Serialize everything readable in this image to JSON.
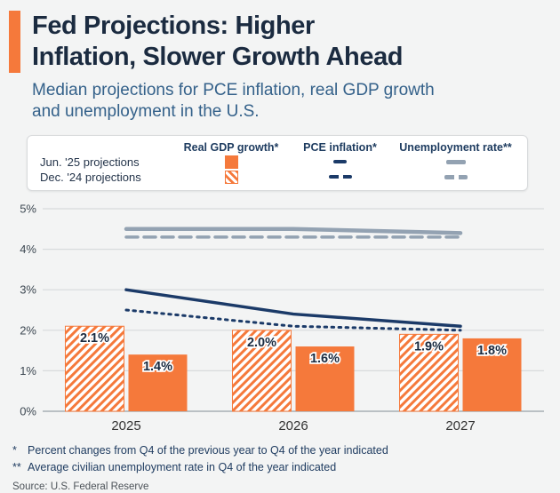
{
  "colors": {
    "orange": "#f5793b",
    "navy": "#1b3a68",
    "gray": "#93a2b2",
    "title": "#1b2b40",
    "subtitle": "#34618a"
  },
  "header": {
    "title_line1": "Fed Projections: Higher",
    "title_line2": "Inflation, Slower Growth Ahead",
    "subtitle_line1": "Median projections for PCE inflation, real GDP growth",
    "subtitle_line2": "and unemployment in the U.S."
  },
  "legend": {
    "columns": [
      "Real GDP growth*",
      "PCE inflation*",
      "Unemployment rate**"
    ],
    "rows": [
      "Jun. '25 projections",
      "Dec. '24 projections"
    ]
  },
  "chart_data": {
    "type": "bar+line combo",
    "categories": [
      "2025",
      "2026",
      "2027"
    ],
    "ylim": [
      0,
      5
    ],
    "yticks": [
      "0%",
      "1%",
      "2%",
      "3%",
      "4%",
      "5%"
    ],
    "bar_series": [
      {
        "name": "Dec. '24 projections",
        "metric": "Real GDP growth",
        "style": "hatched",
        "values": [
          2.1,
          2.0,
          1.9
        ],
        "labels": [
          "2.1%",
          "2.0%",
          "1.9%"
        ]
      },
      {
        "name": "Jun. '25 projections",
        "metric": "Real GDP growth",
        "style": "solid",
        "values": [
          1.4,
          1.6,
          1.8
        ],
        "labels": [
          "1.4%",
          "1.6%",
          "1.8%"
        ]
      }
    ],
    "line_series": [
      {
        "name": "Jun. '25 projections",
        "metric": "Unemployment rate",
        "style": "solid",
        "color": "#93a2b2",
        "width": 4.5,
        "values": [
          4.5,
          4.5,
          4.4
        ]
      },
      {
        "name": "Dec. '24 projections",
        "metric": "Unemployment rate",
        "style": "dashed",
        "color": "#93a2b2",
        "width": 3.5,
        "values": [
          4.3,
          4.3,
          4.3
        ]
      },
      {
        "name": "Jun. '25 projections",
        "metric": "PCE inflation",
        "style": "solid",
        "color": "#1b3a68",
        "width": 3.5,
        "values": [
          3.0,
          2.4,
          2.1
        ]
      },
      {
        "name": "Dec. '24 projections",
        "metric": "PCE inflation",
        "style": "dotted",
        "color": "#1b3a68",
        "width": 3,
        "values": [
          2.5,
          2.1,
          2.0
        ]
      }
    ]
  },
  "footnotes": [
    {
      "marker": "*",
      "text": "Percent changes from Q4 of the previous year to Q4 of the year indicated"
    },
    {
      "marker": "**",
      "text": "Average civilian unemployment rate in Q4 of the year indicated"
    }
  ],
  "source": "Source: U.S. Federal Reserve"
}
